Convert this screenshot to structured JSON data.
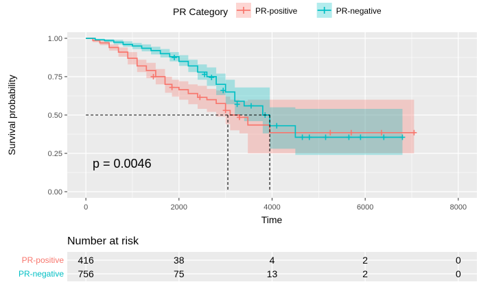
{
  "chart_data": {
    "type": "line",
    "subtype": "kaplan-meier",
    "xlabel": "Time",
    "ylabel": "Survival probability",
    "xlim": [
      -400,
      8400
    ],
    "ylim": [
      -0.04,
      1.04
    ],
    "x_ticks": [
      0,
      2000,
      4000,
      6000,
      8000
    ],
    "y_ticks": [
      0.0,
      0.25,
      0.5,
      0.75,
      1.0
    ],
    "y_tick_labels": [
      "0.00",
      "0.25",
      "0.50",
      "0.75",
      "1.00"
    ],
    "grid": true,
    "legend_title": "PR Category",
    "legend_position": "top",
    "annotation": "p = 0.0046",
    "median_reference_y": 0.5,
    "medians": [
      {
        "series": "PR-positive",
        "x": 3050
      },
      {
        "series": "PR-negative",
        "x": 3950
      }
    ],
    "series": [
      {
        "name": "PR-positive",
        "color": "#F8766D",
        "x": [
          0,
          150,
          300,
          500,
          700,
          900,
          1100,
          1300,
          1500,
          1700,
          1850,
          2000,
          2200,
          2400,
          2600,
          2800,
          3000,
          3100,
          3300,
          3480,
          3950,
          7050
        ],
        "y": [
          1.0,
          0.985,
          0.97,
          0.94,
          0.91,
          0.87,
          0.82,
          0.79,
          0.75,
          0.7,
          0.68,
          0.665,
          0.64,
          0.615,
          0.6,
          0.575,
          0.53,
          0.5,
          0.485,
          0.435,
          0.385,
          0.385
        ],
        "ci_lower": [
          1.0,
          0.975,
          0.955,
          0.92,
          0.88,
          0.83,
          0.78,
          0.74,
          0.7,
          0.645,
          0.62,
          0.6,
          0.57,
          0.54,
          0.52,
          0.49,
          0.44,
          0.4,
          0.38,
          0.25,
          0.25,
          0.25
        ],
        "ci_upper": [
          1.0,
          0.995,
          0.985,
          0.96,
          0.94,
          0.91,
          0.86,
          0.84,
          0.8,
          0.75,
          0.73,
          0.72,
          0.7,
          0.69,
          0.67,
          0.66,
          0.62,
          0.6,
          0.59,
          0.6,
          0.6,
          0.6
        ],
        "censor_x": [
          1450,
          1850,
          2450,
          3000,
          3300,
          5250,
          5700,
          6350,
          7050
        ],
        "censor_y": [
          0.75,
          0.68,
          0.615,
          0.53,
          0.485,
          0.385,
          0.385,
          0.385,
          0.385
        ]
      },
      {
        "name": "PR-negative",
        "color": "#00BFC4",
        "x": [
          0,
          200,
          400,
          600,
          800,
          1000,
          1200,
          1400,
          1600,
          1800,
          2000,
          2200,
          2400,
          2600,
          2800,
          3000,
          3200,
          3400,
          3600,
          3800,
          3950,
          4100,
          4500,
          6800
        ],
        "y": [
          1.0,
          0.99,
          0.985,
          0.975,
          0.96,
          0.95,
          0.935,
          0.92,
          0.9,
          0.88,
          0.85,
          0.82,
          0.78,
          0.75,
          0.7,
          0.65,
          0.59,
          0.56,
          0.56,
          0.5,
          0.43,
          0.43,
          0.355,
          0.355
        ],
        "ci_lower": [
          1.0,
          0.985,
          0.975,
          0.96,
          0.945,
          0.93,
          0.915,
          0.895,
          0.875,
          0.85,
          0.82,
          0.78,
          0.73,
          0.69,
          0.63,
          0.57,
          0.5,
          0.46,
          0.46,
          0.38,
          0.28,
          0.28,
          0.24,
          0.24
        ],
        "ci_upper": [
          1.0,
          0.998,
          0.995,
          0.99,
          0.98,
          0.97,
          0.96,
          0.945,
          0.93,
          0.91,
          0.89,
          0.86,
          0.83,
          0.81,
          0.77,
          0.73,
          0.68,
          0.68,
          0.68,
          0.68,
          0.55,
          0.55,
          0.54,
          0.54
        ],
        "censor_x": [
          1900,
          2550,
          2700,
          2950,
          3250,
          3550,
          3850,
          4100,
          4650,
          4800,
          5150,
          5650,
          5900,
          6400,
          6800
        ],
        "censor_y": [
          0.875,
          0.765,
          0.745,
          0.66,
          0.57,
          0.56,
          0.5,
          0.43,
          0.355,
          0.355,
          0.355,
          0.355,
          0.355,
          0.355,
          0.355
        ]
      }
    ]
  },
  "risk_table": {
    "title": "Number at risk",
    "rows": [
      {
        "label": "PR-positive",
        "color": "#F8766D",
        "counts": [
          "416",
          "38",
          "4",
          "2",
          "0"
        ]
      },
      {
        "label": "PR-negative",
        "color": "#00BFC4",
        "counts": [
          "756",
          "75",
          "13",
          "2",
          "0"
        ]
      }
    ]
  }
}
